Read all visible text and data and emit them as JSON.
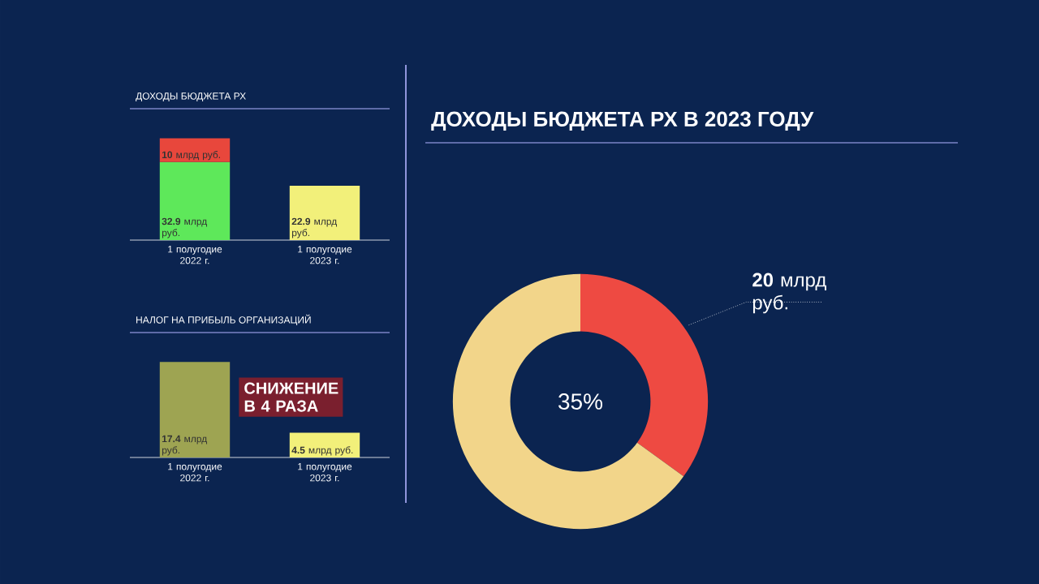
{
  "chart_data": [
    {
      "type": "bar",
      "title": "ДОХОДЫ БЮДЖЕТА РХ",
      "stacked": true,
      "categories": [
        "1 полугодие 2022 г.",
        "1 полугодие 2023 г."
      ],
      "series": [
        {
          "colors": [
            "#5ee85a",
            "#f2f07a"
          ],
          "values": [
            32.9,
            22.9
          ],
          "value_labels": [
            "**32.9** млрд руб.",
            "**22.9** млрд руб."
          ]
        },
        {
          "color": "#e8473c",
          "values": [
            10,
            null
          ],
          "value_labels": [
            "**10** млрд руб.",
            null
          ]
        }
      ]
    },
    {
      "type": "bar",
      "title": "НАЛОГ НА ПРИБЫЛЬ ОРГАНИЗАЦИЙ",
      "categories": [
        "1 полугодие 2022 г.",
        "1 полугодие 2023 г."
      ],
      "values": [
        17.4,
        4.5
      ],
      "colors": [
        "#9ea452",
        "#f2f07a"
      ],
      "value_labels": [
        "**17.4** млрд руб.",
        "**4.5** млрд руб."
      ],
      "annotations": [
        "СНИЖЕНИЕ В 4 РАЗА"
      ]
    },
    {
      "type": "donut",
      "title": "ДОХОДЫ БЮДЖЕТА РХ В 2023 ГОДУ",
      "categories": [
        null,
        null
      ],
      "values": [
        35,
        65
      ],
      "colors": [
        "#ee4a42",
        "#f2d58a"
      ],
      "value_labels": [
        "35%",
        null
      ],
      "annotations": [
        "**20** млрд руб."
      ]
    }
  ]
}
